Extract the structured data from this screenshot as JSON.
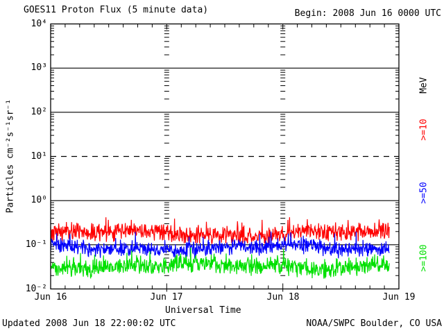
{
  "header": {
    "title": "GOES11 Proton Flux (5 minute data)",
    "begin": "Begin: 2008 Jun 16 0000 UTC"
  },
  "footer": {
    "updated": "Updated 2008 Jun 18 22:00:02 UTC",
    "credit": "NOAA/SWPC Boulder, CO USA"
  },
  "chart_data": {
    "type": "line",
    "title": "GOES11 Proton Flux (5 minute data)",
    "xlabel": "Universal Time",
    "ylabel": "Particles cm⁻²s⁻¹sr⁻¹",
    "y_scale": "log",
    "ylim": [
      0.01,
      10000
    ],
    "y_tick_labels": [
      "10⁴",
      "10³",
      "10²",
      "10¹",
      "10⁰",
      "10⁻¹",
      "10⁻²"
    ],
    "y_tick_exponents": [
      4,
      3,
      2,
      1,
      0,
      -1,
      -2
    ],
    "x_ticks": [
      "Jun 16",
      "Jun 17",
      "Jun 18",
      "Jun 19"
    ],
    "x_minor_ticks_per_day": 8,
    "days_span": 3,
    "days_with_data": 2.9167,
    "cadence_minutes": 5,
    "grid": {
      "solid_decades": [
        3,
        2,
        0,
        -1
      ],
      "dashed_decades": [
        1
      ],
      "day_boundary_columns": [
        "Jun 17",
        "Jun 18"
      ]
    },
    "legend": {
      "unit": "MeV",
      "unit_color": "#000000",
      "items": [
        {
          "label": ">=10",
          "color": "#ff0000"
        },
        {
          "label": ">=50",
          "color": "#0000ff"
        },
        {
          "label": ">=100",
          "color": "#00e000"
        }
      ]
    },
    "series": [
      {
        "name": ">=10 MeV",
        "color": "#ff0000",
        "approx_flux_range": [
          0.11,
          0.5
        ],
        "approx_flux_typical": 0.18,
        "gen_log10": {
          "base": -0.75,
          "noise": 0.17,
          "spike": 0.33,
          "min": -0.97,
          "max": -0.3
        }
      },
      {
        "name": ">=50 MeV",
        "color": "#0000ff",
        "approx_flux_range": [
          0.042,
          0.2
        ],
        "approx_flux_typical": 0.083,
        "gen_log10": {
          "base": -1.08,
          "noise": 0.15,
          "spike": 0.28,
          "min": -1.38,
          "max": -0.7
        }
      },
      {
        "name": ">=100 MeV",
        "color": "#00e000",
        "approx_flux_range": [
          0.016,
          0.087
        ],
        "approx_flux_typical": 0.033,
        "gen_log10": {
          "base": -1.48,
          "noise": 0.17,
          "spike": 0.3,
          "min": -1.79,
          "max": -1.06
        }
      }
    ]
  }
}
